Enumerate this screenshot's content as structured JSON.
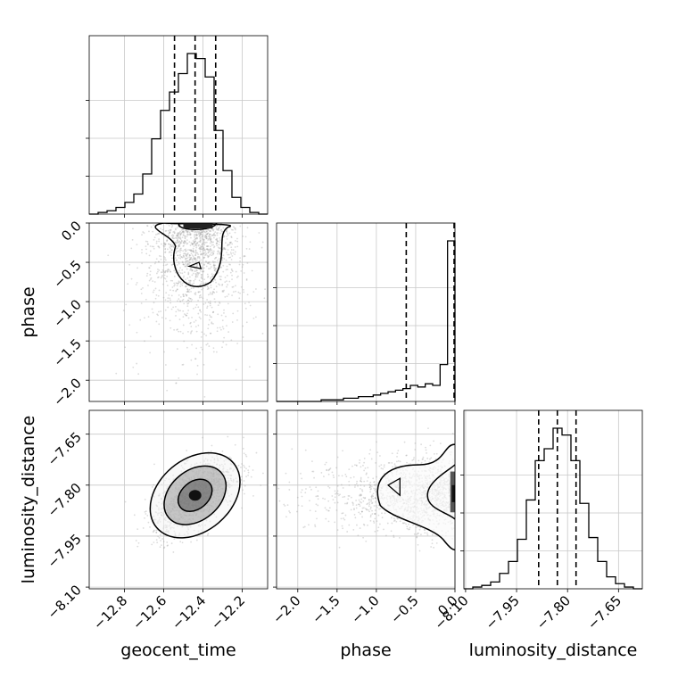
{
  "chart_data": {
    "type": "corner",
    "parameters": [
      "geocent_time",
      "phase",
      "luminosity_distance"
    ],
    "axis_labels": {
      "geocent_time": "geocent_time",
      "phase": "phase",
      "luminosity_distance": "luminosity_distance"
    },
    "ranges": {
      "geocent_time": [
        -12.98,
        -12.07
      ],
      "phase": [
        -2.27,
        0.0
      ],
      "luminosity_distance": [
        -8.105,
        -7.58
      ]
    },
    "ticks": {
      "geocent_time": [
        -12.8,
        -12.6,
        -12.4,
        -12.2
      ],
      "phase": [
        -2.0,
        -1.5,
        -1.0,
        -0.5,
        0.0
      ],
      "luminosity_distance": [
        -8.1,
        -7.95,
        -7.8,
        -7.65
      ]
    },
    "tick_labels": {
      "geocent_time": [
        "−12.8",
        "−12.6",
        "−12.4",
        "−12.2"
      ],
      "phase": [
        "−2.0",
        "−1.5",
        "−1.0",
        "−0.5",
        "0.0"
      ],
      "luminosity_distance": [
        "−8.10",
        "−7.95",
        "−7.80",
        "−7.65"
      ]
    },
    "quantiles": {
      "geocent_time": [
        -12.545,
        -12.44,
        -12.335
      ],
      "phase": [
        -0.62,
        0.0
      ],
      "luminosity_distance": [
        -7.885,
        -7.83,
        -7.775
      ]
    },
    "histograms": {
      "geocent_time": [
        0.0,
        0.01,
        0.02,
        0.04,
        0.07,
        0.12,
        0.24,
        0.45,
        0.62,
        0.73,
        0.84,
        0.96,
        0.93,
        0.82,
        0.5,
        0.26,
        0.1,
        0.04,
        0.01,
        0.0
      ],
      "phase": [
        0.0,
        0.0,
        0.0,
        0.0,
        0.0,
        0.0,
        0.01,
        0.01,
        0.01,
        0.02,
        0.02,
        0.03,
        0.03,
        0.04,
        0.05,
        0.06,
        0.07,
        0.08,
        0.1,
        0.09,
        0.11,
        0.1,
        0.23,
        1.0
      ],
      "luminosity_distance": [
        0.0,
        0.01,
        0.02,
        0.04,
        0.09,
        0.16,
        0.29,
        0.52,
        0.75,
        0.82,
        0.94,
        0.9,
        0.75,
        0.5,
        0.3,
        0.16,
        0.07,
        0.03,
        0.01,
        0.0
      ]
    },
    "grid": true,
    "line_color": "#000000",
    "scatter_color": "#9a9a9a"
  }
}
